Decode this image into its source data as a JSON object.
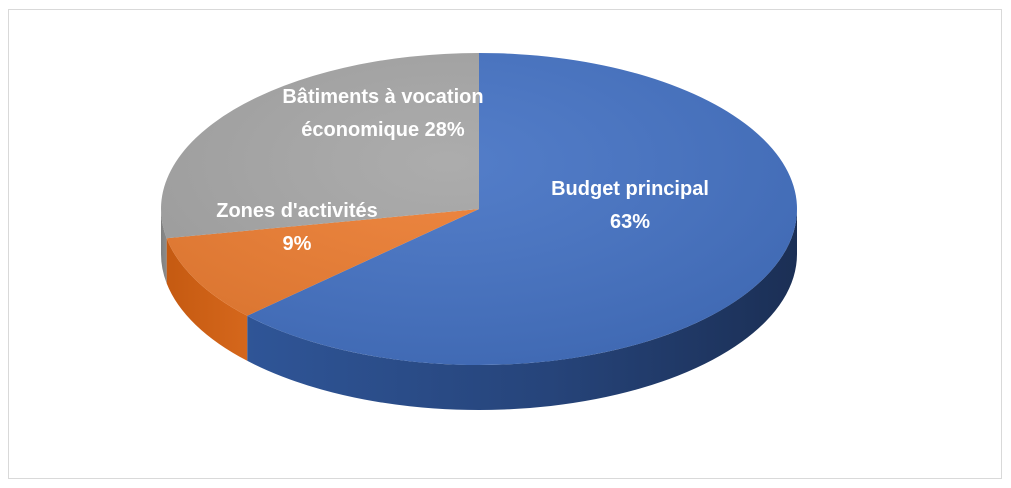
{
  "chart_data": {
    "type": "pie",
    "style": "3d",
    "title": "",
    "slices": [
      {
        "name": "Budget principal",
        "value": 63,
        "color": "#4472c4",
        "label_lines": [
          "Budget principal",
          "63%"
        ],
        "label_color": "#ffffff"
      },
      {
        "name": "Zones d'activités",
        "value": 9,
        "color": "#ed7d31",
        "label_lines": [
          "Zones d'activités",
          "9%"
        ],
        "label_color": "#ffffff"
      },
      {
        "name": "Bâtiments à vocation économique",
        "value": 28,
        "color": "#a5a5a5",
        "label_lines": [
          "Bâtiments à vocation",
          "économique 28%"
        ],
        "label_color": "#ffffff"
      }
    ],
    "legend": "none"
  }
}
